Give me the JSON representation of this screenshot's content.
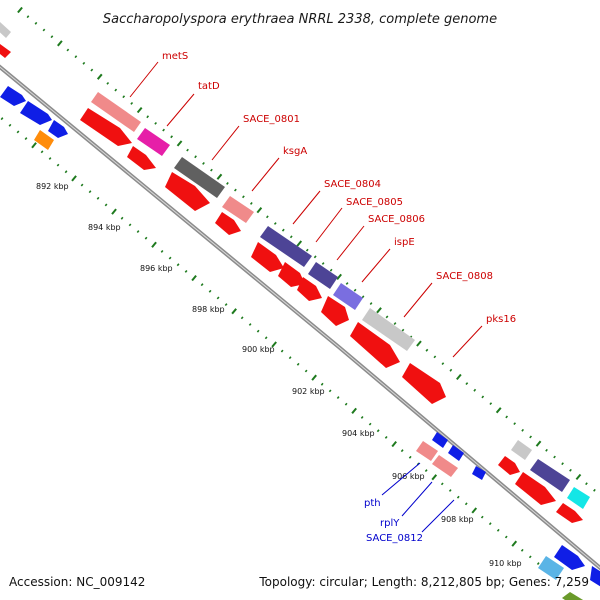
{
  "map": {
    "title": "Saccharopolyspora erythraea NRRL 2338, complete genome",
    "accession": "Accession: NC_009142",
    "topology": "Topology: circular; Length: 8,212,805 bp; Genes: 7,259"
  },
  "ticks": [
    "892 kbp",
    "894 kbp",
    "896 kbp",
    "898 kbp",
    "900 kbp",
    "902 kbp",
    "904 kbp",
    "906 kbp",
    "908 kbp",
    "910 kbp"
  ],
  "labels_upper": [
    "metS",
    "tatD",
    "SACE_0801",
    "ksgA",
    "SACE_0804",
    "SACE_0805",
    "SACE_0806",
    "ispE",
    "SACE_0808",
    "pks16"
  ],
  "labels_lower": [
    "pth",
    "rplY",
    "SACE_0812"
  ],
  "colors": {
    "backbone": "#8c8c8c",
    "tick": "#1e7a1e",
    "red": "#f01010",
    "pink": "#f08a8a",
    "magenta": "#e61fa8",
    "darkgray": "#606060",
    "purple": "#4d4496",
    "lightpurple": "#7a6ee0",
    "lightgray": "#c8c8c8",
    "blue": "#0f1ee6",
    "orange": "#ff8c0a",
    "cyan": "#14e6e6",
    "lightblue": "#5ab4e6",
    "green": "#6a9a2a",
    "label_red": "#cc0000",
    "label_blue": "#0000cc"
  }
}
